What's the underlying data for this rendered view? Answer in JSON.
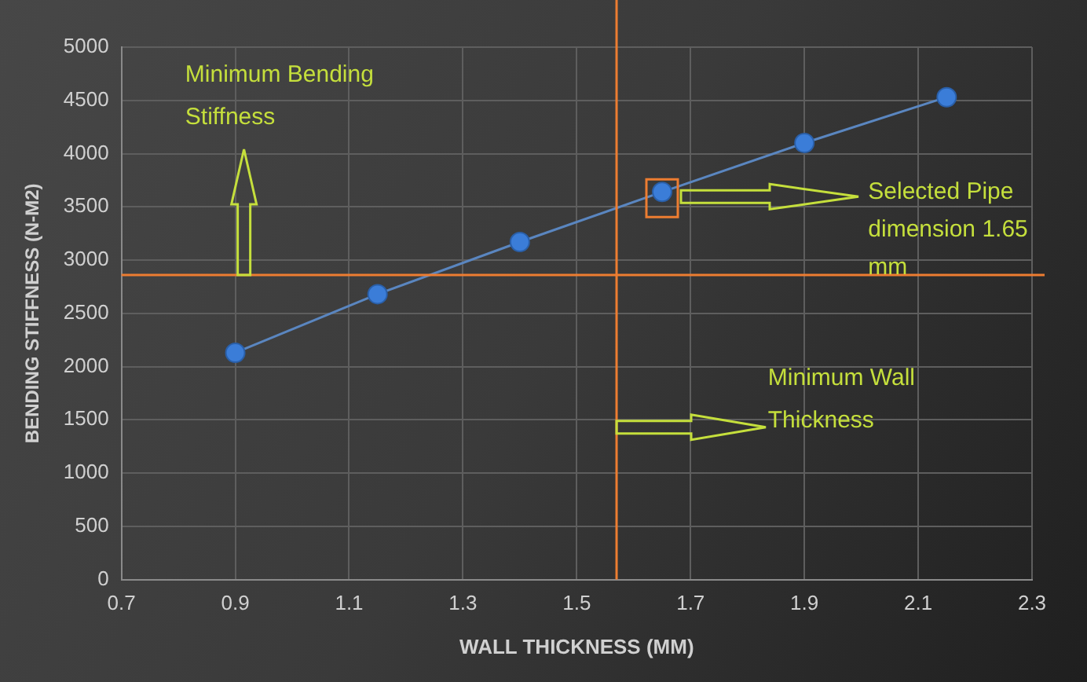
{
  "chart_data": {
    "type": "line",
    "xlabel": "WALL THICKNESS (MM)",
    "ylabel": "BENDING STIFFNESS (N-M2)",
    "x": [
      0.9,
      1.15,
      1.4,
      1.65,
      1.9,
      2.15
    ],
    "series": [
      {
        "color": "#3b7dd8",
        "values": [
          2130,
          2680,
          3170,
          3640,
          4100,
          4530
        ]
      }
    ],
    "xlim": [
      0.7,
      2.3
    ],
    "xticks": [
      0.7,
      0.9,
      1.1,
      1.3,
      1.5,
      1.7,
      1.9,
      2.1,
      2.3
    ],
    "ylim": [
      0,
      5000
    ],
    "yticks": [
      0,
      500,
      1000,
      1500,
      2000,
      2500,
      3000,
      3500,
      4000,
      4500,
      5000
    ],
    "ref_lines": [
      {
        "axis": "y",
        "value": 2860,
        "color": "#ed7d31"
      },
      {
        "axis": "x",
        "value": 1.57,
        "color": "#ed7d31"
      }
    ],
    "annotations": [
      "Minimum Bending Stiffness",
      "Selected Pipe dimension 1.65 mm",
      "Minimum Wall Thickness"
    ],
    "grid": true,
    "legend": false,
    "marker": "circle",
    "line_style": "solid"
  }
}
